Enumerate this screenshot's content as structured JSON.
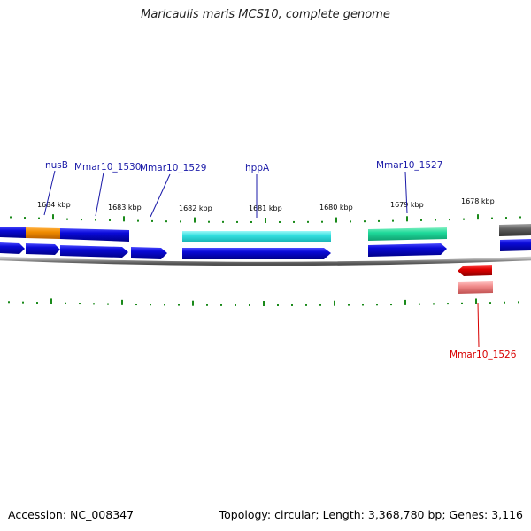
{
  "title": "Maricaulis maris MCS10, complete genome",
  "footer": {
    "accession": "Accession: NC_008347",
    "summary": "Topology: circular; Length: 3,368,780 bp; Genes: 3,116"
  },
  "scale": {
    "tick_labels": [
      "1684 kbp",
      "1683 kbp",
      "1682 kbp",
      "1681 kbp",
      "1680 kbp",
      "1679 kbp",
      "1678 kbp"
    ]
  },
  "genes": [
    {
      "name": "nusB",
      "strand": "+",
      "color": "#1a1aa8"
    },
    {
      "name": "Mmar10_1530",
      "strand": "+",
      "color": "#1a1aa8"
    },
    {
      "name": "Mmar10_1529",
      "strand": "+",
      "color": "#1a1aa8"
    },
    {
      "name": "hppA",
      "strand": "+",
      "color": "#1a1aa8"
    },
    {
      "name": "Mmar10_1527",
      "strand": "+",
      "color": "#1a1aa8"
    },
    {
      "name": "Mmar10_1526",
      "strand": "-",
      "color": "#e00000"
    }
  ],
  "colors": {
    "plus_strand_cds": "#0a0ad8",
    "minus_strand_cds": "#e00000",
    "gene_label_plus": "#1a1aa8",
    "gene_label_minus": "#d80000",
    "orange_feature": "#f08c00",
    "cyan_feature": "#33e0e0",
    "green_feature": "#1ed99a",
    "gray_feature": "#606060",
    "pink_feature": "#f08a8a",
    "ticks": "#1a8a1a",
    "backbone": "#8a8a8a"
  }
}
